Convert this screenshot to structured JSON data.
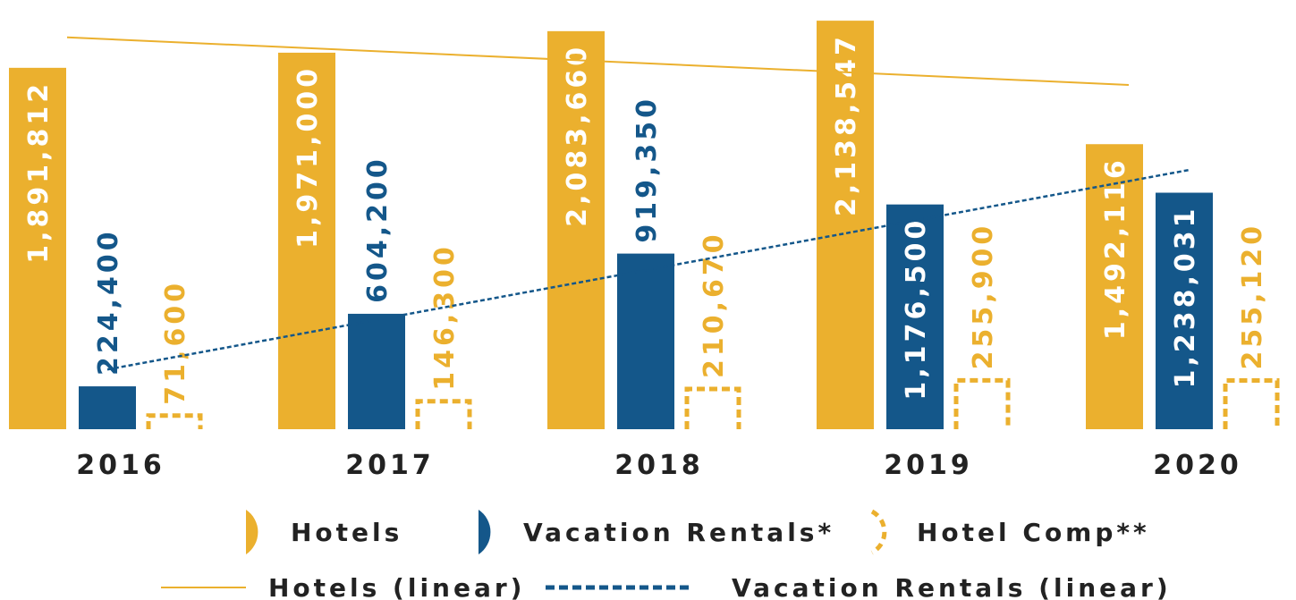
{
  "chart_data": {
    "type": "bar",
    "categories": [
      "2016",
      "2017",
      "2018",
      "2019",
      "2020"
    ],
    "series": [
      {
        "name": "Hotels",
        "color": "#ebb02e",
        "style": "solid",
        "values": [
          1891812,
          1971000,
          2083660,
          2138547,
          1492116
        ],
        "value_labels": [
          "1,891,812",
          "1,971,000",
          "2,083,660",
          "2,138,547",
          "1,492,116"
        ]
      },
      {
        "name": "Vacation Rentals*",
        "color": "#14578a",
        "style": "solid",
        "values": [
          224400,
          604200,
          919350,
          1176500,
          1238031
        ],
        "value_labels": [
          "224,400",
          "604,200",
          "919,350",
          "1,176,500",
          "1,238,031"
        ]
      },
      {
        "name": "Hotel Comp**",
        "color": "#ebb02e",
        "style": "dashed",
        "values": [
          71600,
          146300,
          210670,
          255900,
          255120
        ],
        "value_labels": [
          "71,600",
          "146,300",
          "210,670",
          "255,900",
          "255,120"
        ]
      }
    ],
    "trendlines": [
      {
        "name": "Hotels (linear)",
        "series": 0,
        "color": "#ebb02e",
        "style": "solid"
      },
      {
        "name": "Vacation Rentals (linear)",
        "series": 1,
        "color": "#14578a",
        "style": "dotted"
      }
    ],
    "ylim": [
      0,
      2200000
    ]
  }
}
